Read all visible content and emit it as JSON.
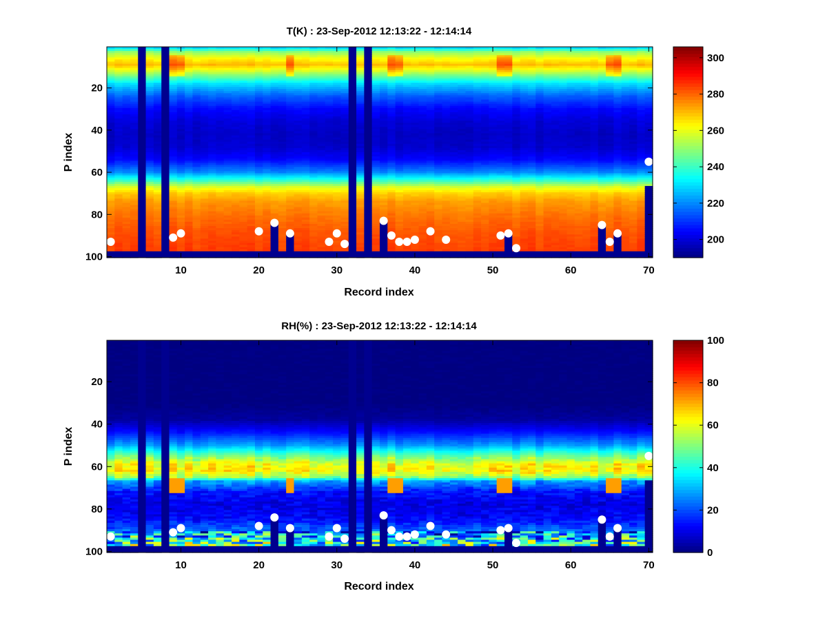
{
  "colors": {
    "background": "#ffffff",
    "invalid": "#00008f",
    "marker": "#ffffff",
    "colormap": "jet"
  },
  "chart_data": [
    {
      "type": "heatmap",
      "title": "T(K) : 23-Sep-2012 12:13:22 - 12:14:14",
      "xlabel": "Record index",
      "ylabel": "P index",
      "xlim": [
        0.5,
        70.5
      ],
      "ylim": [
        0.5,
        100.5
      ],
      "y_reversed": true,
      "xticks": [
        10,
        20,
        30,
        40,
        50,
        60,
        70
      ],
      "yticks": [
        20,
        40,
        60,
        80,
        100
      ],
      "colorbar": {
        "clim": [
          190,
          306
        ],
        "ticks": [
          200,
          220,
          240,
          260,
          280,
          300
        ]
      },
      "profile": [
        [
          1,
          230
        ],
        [
          3,
          250
        ],
        [
          6,
          262
        ],
        [
          9,
          270
        ],
        [
          11,
          262
        ],
        [
          14,
          248
        ],
        [
          18,
          230
        ],
        [
          24,
          215
        ],
        [
          30,
          205
        ],
        [
          36,
          200
        ],
        [
          42,
          198
        ],
        [
          48,
          199
        ],
        [
          54,
          205
        ],
        [
          60,
          220
        ],
        [
          64,
          240
        ],
        [
          67,
          258
        ],
        [
          70,
          268
        ],
        [
          74,
          274
        ],
        [
          80,
          278
        ],
        [
          88,
          282
        ],
        [
          95,
          284
        ],
        [
          100,
          285
        ]
      ],
      "highlight_rows": [
        5,
        14
      ],
      "highlight_columns": [
        9,
        10,
        24,
        37,
        38,
        51,
        52,
        65,
        66
      ],
      "invalid_columns": [
        5,
        8,
        32,
        34
      ],
      "missing_bottom_row": 98,
      "surface_points": [
        [
          1,
          93
        ],
        [
          9,
          91
        ],
        [
          10,
          89
        ],
        [
          20,
          88
        ],
        [
          22,
          84
        ],
        [
          24,
          89
        ],
        [
          29,
          93
        ],
        [
          30,
          89
        ],
        [
          31,
          94
        ],
        [
          36,
          83
        ],
        [
          37,
          90
        ],
        [
          38,
          93
        ],
        [
          39,
          93
        ],
        [
          40,
          92
        ],
        [
          42,
          88
        ],
        [
          44,
          92
        ],
        [
          51,
          90
        ],
        [
          52,
          89
        ],
        [
          53,
          96
        ],
        [
          64,
          85
        ],
        [
          65,
          93
        ],
        [
          66,
          89
        ],
        [
          70,
          55
        ]
      ],
      "column_masks": [
        [
          22,
          84
        ],
        [
          24,
          89
        ],
        [
          36,
          83
        ],
        [
          52,
          89
        ],
        [
          64,
          85
        ],
        [
          66,
          89
        ],
        [
          70,
          67
        ]
      ]
    },
    {
      "type": "heatmap",
      "title": "RH(%) : 23-Sep-2012 12:13:22 - 12:14:14",
      "xlabel": "Record index",
      "ylabel": "P index",
      "xlim": [
        0.5,
        70.5
      ],
      "ylim": [
        0.5,
        100.5
      ],
      "y_reversed": true,
      "xticks": [
        10,
        20,
        30,
        40,
        50,
        60,
        70
      ],
      "yticks": [
        20,
        40,
        60,
        80,
        100
      ],
      "colorbar": {
        "clim": [
          0,
          100
        ],
        "ticks": [
          0,
          20,
          40,
          60,
          80,
          100
        ]
      },
      "profile": [
        [
          1,
          0
        ],
        [
          30,
          0
        ],
        [
          38,
          3
        ],
        [
          44,
          14
        ],
        [
          50,
          28
        ],
        [
          55,
          48
        ],
        [
          59,
          62
        ],
        [
          62,
          64
        ],
        [
          65,
          52
        ],
        [
          67,
          28
        ],
        [
          72,
          14
        ],
        [
          78,
          10
        ],
        [
          84,
          12
        ],
        [
          90,
          22
        ],
        [
          94,
          35
        ],
        [
          97,
          45
        ],
        [
          100,
          50
        ]
      ],
      "highlight_columns": [
        9,
        10,
        24,
        37,
        38,
        51,
        52,
        65,
        66
      ],
      "invalid_columns": [
        5,
        8,
        32,
        34
      ],
      "missing_bottom_row": 98,
      "surface_points": [
        [
          1,
          93
        ],
        [
          9,
          91
        ],
        [
          10,
          89
        ],
        [
          20,
          88
        ],
        [
          22,
          84
        ],
        [
          24,
          89
        ],
        [
          29,
          93
        ],
        [
          30,
          89
        ],
        [
          31,
          94
        ],
        [
          36,
          83
        ],
        [
          37,
          90
        ],
        [
          38,
          93
        ],
        [
          39,
          93
        ],
        [
          40,
          92
        ],
        [
          42,
          88
        ],
        [
          44,
          92
        ],
        [
          51,
          90
        ],
        [
          52,
          89
        ],
        [
          53,
          96
        ],
        [
          64,
          85
        ],
        [
          65,
          93
        ],
        [
          66,
          89
        ],
        [
          70,
          55
        ]
      ],
      "column_masks": [
        [
          22,
          84
        ],
        [
          24,
          89
        ],
        [
          36,
          83
        ],
        [
          52,
          89
        ],
        [
          64,
          85
        ],
        [
          66,
          89
        ],
        [
          70,
          67
        ]
      ]
    }
  ]
}
